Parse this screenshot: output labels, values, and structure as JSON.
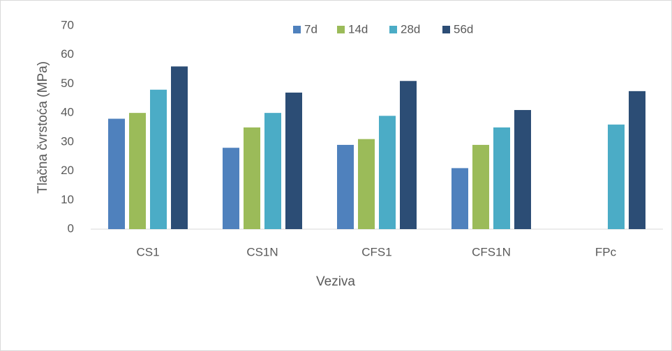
{
  "chart_data": {
    "type": "bar",
    "categories": [
      "CS1",
      "CS1N",
      "CFS1",
      "CFS1N",
      "FPc"
    ],
    "series": [
      {
        "name": "7d",
        "color": "#4f81bd",
        "values": [
          38,
          28,
          29,
          21,
          null
        ]
      },
      {
        "name": "14d",
        "color": "#9bbb59",
        "values": [
          40,
          35,
          31,
          29,
          null
        ]
      },
      {
        "name": "28d",
        "color": "#4bacc6",
        "values": [
          48,
          40,
          39,
          35,
          36
        ]
      },
      {
        "name": "56d",
        "color": "#2c4d75",
        "values": [
          56,
          47,
          51,
          41,
          47.5
        ]
      }
    ],
    "x_label": "Veziva",
    "y_label": "Tlačna čvrstoća (MPa)",
    "ylim": [
      0,
      70
    ],
    "yticks": [
      0,
      10,
      20,
      30,
      40,
      50,
      60,
      70
    ],
    "grid": false,
    "legend": "top"
  }
}
